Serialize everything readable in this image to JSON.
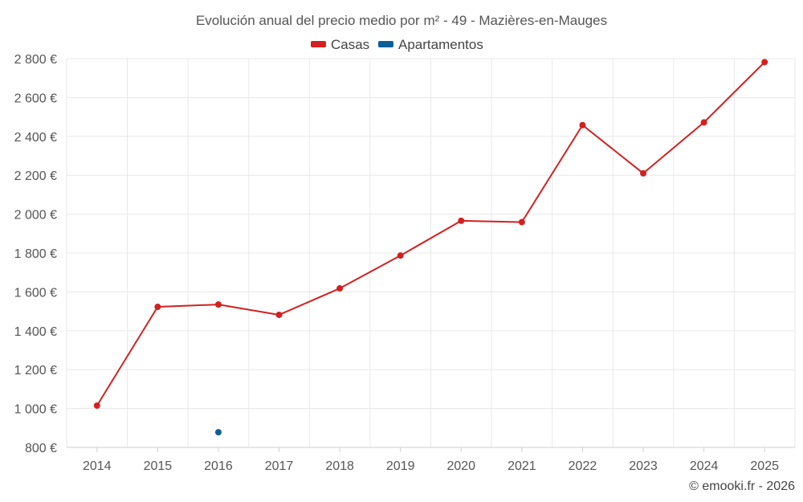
{
  "chart_data": {
    "type": "line",
    "title": "Evolución anual del precio medio por m² - 49 - Mazières-en-Mauges",
    "categories": [
      "2014",
      "2015",
      "2016",
      "2017",
      "2018",
      "2019",
      "2020",
      "2021",
      "2022",
      "2023",
      "2024",
      "2025"
    ],
    "series": [
      {
        "name": "Casas",
        "color": "#d42020",
        "values": [
          1015,
          1523,
          1535,
          1482,
          1618,
          1787,
          1966,
          1959,
          2458,
          2210,
          2472,
          2782
        ]
      },
      {
        "name": "Apartamentos",
        "color": "#0e5e9a",
        "values": [
          null,
          null,
          878,
          null,
          null,
          null,
          null,
          null,
          null,
          null,
          null,
          null
        ]
      }
    ],
    "yticks": [
      800,
      1000,
      1200,
      1400,
      1600,
      1800,
      2000,
      2200,
      2400,
      2600,
      2800
    ],
    "ytick_labels": [
      "800 €",
      "1 000 €",
      "1 200 €",
      "1 400 €",
      "1 600 €",
      "1 800 €",
      "2 000 €",
      "2 200 €",
      "2 400 €",
      "2 600 €",
      "2 800 €"
    ],
    "ylim": [
      800,
      2800
    ],
    "xlabel": "",
    "ylabel": "",
    "grid": true,
    "legend": "top-center"
  },
  "credit": "© emooki.fr - 2026"
}
